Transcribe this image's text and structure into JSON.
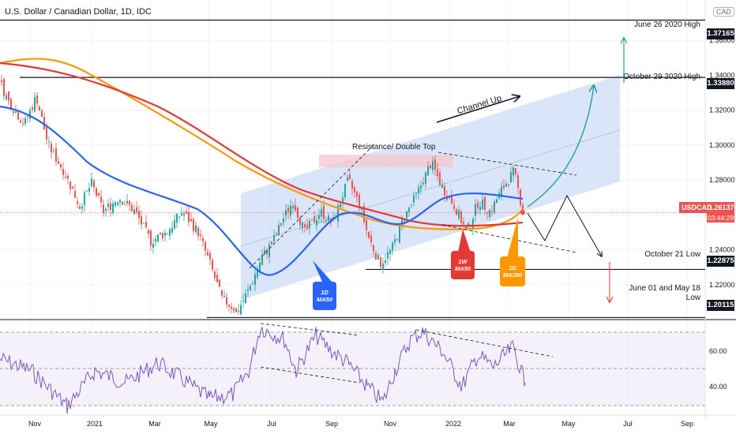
{
  "title": "U.S. Dollar / Canadian Dollar, 1D, IDC",
  "currency": "CAD",
  "price_axis": {
    "ticks": [
      "1.38000",
      "1.36000",
      "1.34000",
      "1.32000",
      "1.30000",
      "1.28000",
      "1.26000",
      "1.24000",
      "1.22000",
      "1.20000"
    ],
    "highlight_labels": [
      "1.37165",
      "1.33880",
      "1.22875",
      "1.20115"
    ]
  },
  "current_price": {
    "symbol": "USDCAD",
    "value": "1.26137",
    "countdown": "03:44:29"
  },
  "time_axis": [
    "Nov",
    "2021",
    "Mar",
    "May",
    "Jul",
    "Sep",
    "Nov",
    "2022",
    "Mar",
    "May",
    "Jul",
    "Sep"
  ],
  "rsi_axis": [
    "60.00",
    "40.00"
  ],
  "annotations": {
    "june26": "June 26 2020 High",
    "oct29": "October 29 2020 High",
    "resistance": "Resistance/ Double Top",
    "channel_up": "Channel Up",
    "oct21": "October 21 Low",
    "june01_line1": "June 01 and May 18",
    "june01_line2": "Low"
  },
  "callouts": {
    "ma50_1d": [
      "1D",
      "MA50"
    ],
    "ma50_1w": [
      "1W",
      "MA50"
    ],
    "ma200_1d": [
      "1D",
      "MA200"
    ]
  },
  "colors": {
    "up": "#26a69a",
    "down": "#ef5350",
    "ma50_1d": "#2962ff",
    "ma200_1d": "#ff9800",
    "ma50_1w": "#e53935",
    "rsi": "#7e57c2",
    "channel": "#bbd0f5",
    "projection": "#26a69a"
  },
  "chart_data": {
    "type": "line",
    "title": "U.S. Dollar / Canadian Dollar, 1D, IDC",
    "x": [
      "Nov",
      "2021",
      "Mar",
      "May",
      "Jul",
      "Sep",
      "Nov",
      "2022",
      "Mar"
    ],
    "series": [
      {
        "name": "USDCAD",
        "values": [
          1.31,
          1.275,
          1.265,
          1.215,
          1.24,
          1.265,
          1.255,
          1.275,
          1.262
        ]
      }
    ],
    "levels": [
      {
        "label": "June 26 2020 High",
        "value": 1.37165
      },
      {
        "label": "October 29 2020 High",
        "value": 1.3388
      },
      {
        "label": "October 21 Low",
        "value": 1.22875
      },
      {
        "label": "June 01 and May 18 Low",
        "value": 1.20115
      }
    ],
    "ylim": [
      1.2,
      1.38
    ]
  }
}
